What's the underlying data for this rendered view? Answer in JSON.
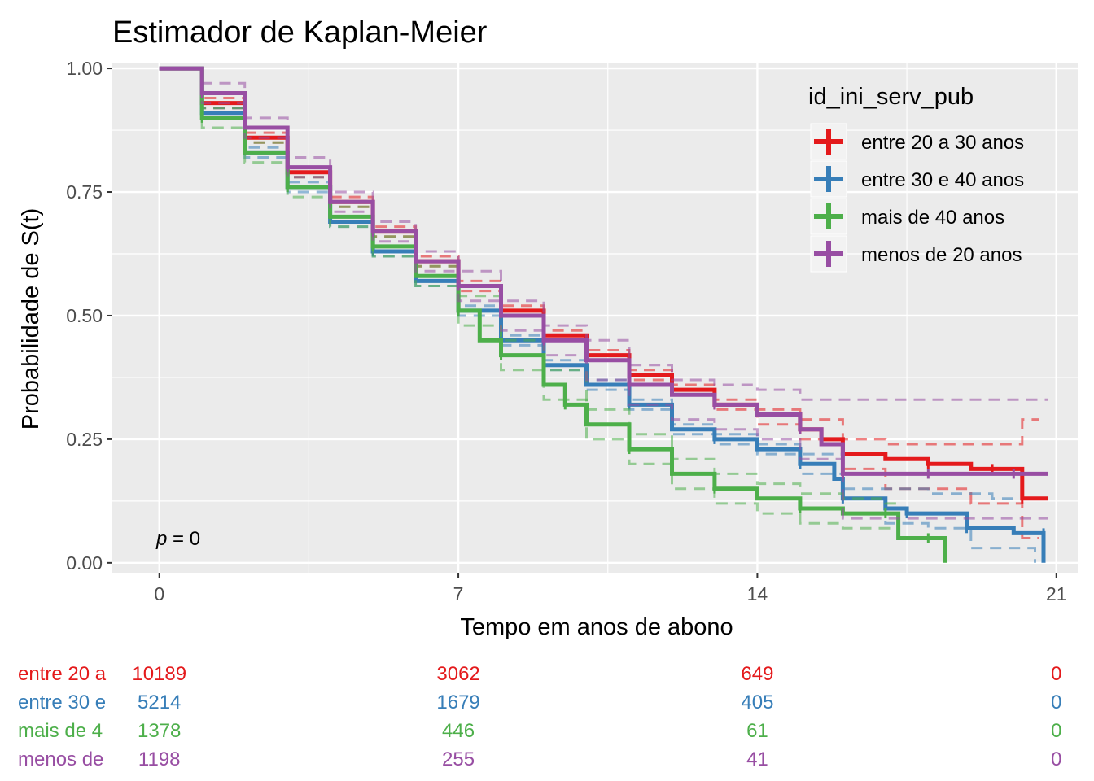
{
  "chart_data": {
    "type": "line",
    "subtype": "kaplan-meier",
    "title": "Estimador de Kaplan-Meier",
    "xlabel": "Tempo em anos de abono",
    "ylabel": "Probabilidade de S(t)",
    "xlim": [
      -1.1,
      21.5
    ],
    "ylim": [
      -0.02,
      1.01
    ],
    "x_ticks": [
      0,
      7,
      14,
      21
    ],
    "x_tick_labels": [
      "0",
      "7",
      "14",
      "21"
    ],
    "y_ticks": [
      0,
      0.25,
      0.5,
      0.75,
      1
    ],
    "y_tick_labels": [
      "0.00",
      "0.25",
      "0.50",
      "0.75",
      "1.00"
    ],
    "grid": true,
    "legend": {
      "title": "id_ini_serv_pub",
      "position": "top-right"
    },
    "pvalue": {
      "label": "p",
      "text": " = 0"
    },
    "series": [
      {
        "name": "entre 20 a 30 anos",
        "color": "#E41A1C",
        "points": [
          [
            0,
            1
          ],
          [
            1,
            0.93
          ],
          [
            2,
            0.86
          ],
          [
            3,
            0.79
          ],
          [
            4,
            0.73
          ],
          [
            5,
            0.67
          ],
          [
            6,
            0.61
          ],
          [
            7,
            0.56
          ],
          [
            8,
            0.51
          ],
          [
            9,
            0.46
          ],
          [
            10,
            0.42
          ],
          [
            11,
            0.38
          ],
          [
            12,
            0.35
          ],
          [
            13,
            0.32
          ],
          [
            14,
            0.3
          ],
          [
            15,
            0.27
          ],
          [
            15.5,
            0.25
          ],
          [
            16,
            0.22
          ],
          [
            17,
            0.21
          ],
          [
            18,
            0.2
          ],
          [
            19,
            0.19
          ],
          [
            19.5,
            0.19
          ],
          [
            20,
            0.19
          ],
          [
            20.2,
            0.13
          ],
          [
            20.8,
            0.13
          ]
        ],
        "lower": [
          [
            0,
            1
          ],
          [
            1,
            0.92
          ],
          [
            2,
            0.85
          ],
          [
            3,
            0.78
          ],
          [
            4,
            0.72
          ],
          [
            5,
            0.66
          ],
          [
            6,
            0.6
          ],
          [
            7,
            0.55
          ],
          [
            8,
            0.5
          ],
          [
            9,
            0.45
          ],
          [
            10,
            0.41
          ],
          [
            11,
            0.37
          ],
          [
            12,
            0.34
          ],
          [
            13,
            0.31
          ],
          [
            14,
            0.28
          ],
          [
            15,
            0.25
          ],
          [
            16,
            0.19
          ],
          [
            17,
            0.15
          ],
          [
            18,
            0.15
          ],
          [
            19,
            0.12
          ],
          [
            20,
            0.12
          ],
          [
            20.2,
            0.05
          ],
          [
            20.6,
            0.05
          ]
        ],
        "upper": [
          [
            0,
            1
          ],
          [
            1,
            0.94
          ],
          [
            2,
            0.87
          ],
          [
            3,
            0.8
          ],
          [
            4,
            0.74
          ],
          [
            5,
            0.68
          ],
          [
            6,
            0.62
          ],
          [
            7,
            0.57
          ],
          [
            8,
            0.52
          ],
          [
            9,
            0.47
          ],
          [
            10,
            0.43
          ],
          [
            11,
            0.39
          ],
          [
            12,
            0.36
          ],
          [
            13,
            0.33
          ],
          [
            14,
            0.31
          ],
          [
            15,
            0.29
          ],
          [
            16,
            0.25
          ],
          [
            17,
            0.24
          ],
          [
            18,
            0.24
          ],
          [
            19,
            0.24
          ],
          [
            20,
            0.24
          ],
          [
            20.2,
            0.29
          ],
          [
            20.6,
            0.29
          ]
        ]
      },
      {
        "name": "entre 30 e 40 anos",
        "color": "#377EB8",
        "points": [
          [
            0,
            1
          ],
          [
            1,
            0.91
          ],
          [
            2,
            0.83
          ],
          [
            3,
            0.76
          ],
          [
            4,
            0.69
          ],
          [
            5,
            0.63
          ],
          [
            6,
            0.57
          ],
          [
            7,
            0.51
          ],
          [
            8,
            0.45
          ],
          [
            9,
            0.4
          ],
          [
            10,
            0.36
          ],
          [
            11,
            0.32
          ],
          [
            12,
            0.27
          ],
          [
            13,
            0.25
          ],
          [
            14,
            0.23
          ],
          [
            15,
            0.2
          ],
          [
            15.8,
            0.17
          ],
          [
            16,
            0.13
          ],
          [
            17,
            0.11
          ],
          [
            17.5,
            0.1
          ],
          [
            18,
            0.1
          ],
          [
            18.9,
            0.07
          ],
          [
            20,
            0.06
          ],
          [
            20.7,
            0.06
          ],
          [
            20.7,
            0
          ]
        ],
        "lower": [
          [
            0,
            1
          ],
          [
            1,
            0.9
          ],
          [
            2,
            0.82
          ],
          [
            3,
            0.75
          ],
          [
            4,
            0.68
          ],
          [
            5,
            0.62
          ],
          [
            6,
            0.56
          ],
          [
            7,
            0.5
          ],
          [
            8,
            0.44
          ],
          [
            9,
            0.39
          ],
          [
            10,
            0.35
          ],
          [
            11,
            0.31
          ],
          [
            12,
            0.26
          ],
          [
            13,
            0.24
          ],
          [
            14,
            0.22
          ],
          [
            15,
            0.18
          ],
          [
            16,
            0.1
          ],
          [
            17,
            0.08
          ],
          [
            18,
            0.07
          ],
          [
            19,
            0.03
          ],
          [
            20,
            0.03
          ],
          [
            20.5,
            0
          ]
        ],
        "upper": [
          [
            0,
            1
          ],
          [
            1,
            0.92
          ],
          [
            2,
            0.84
          ],
          [
            3,
            0.77
          ],
          [
            4,
            0.7
          ],
          [
            5,
            0.64
          ],
          [
            6,
            0.58
          ],
          [
            7,
            0.52
          ],
          [
            8,
            0.46
          ],
          [
            9,
            0.41
          ],
          [
            10,
            0.37
          ],
          [
            11,
            0.33
          ],
          [
            12,
            0.28
          ],
          [
            13,
            0.26
          ],
          [
            14,
            0.24
          ],
          [
            15,
            0.22
          ],
          [
            16,
            0.15
          ],
          [
            17,
            0.15
          ],
          [
            18,
            0.14
          ],
          [
            19,
            0.14
          ],
          [
            19.5,
            0.13
          ],
          [
            20,
            0.13
          ]
        ]
      },
      {
        "name": "mais de 40 anos",
        "color": "#4DAF4A",
        "points": [
          [
            0,
            1
          ],
          [
            1,
            0.9
          ],
          [
            2,
            0.83
          ],
          [
            3,
            0.76
          ],
          [
            4,
            0.7
          ],
          [
            5,
            0.64
          ],
          [
            6,
            0.58
          ],
          [
            7,
            0.51
          ],
          [
            7.5,
            0.45
          ],
          [
            8,
            0.42
          ],
          [
            9,
            0.36
          ],
          [
            9.5,
            0.32
          ],
          [
            10,
            0.28
          ],
          [
            11,
            0.23
          ],
          [
            12,
            0.18
          ],
          [
            13,
            0.15
          ],
          [
            14,
            0.13
          ],
          [
            15,
            0.11
          ],
          [
            16,
            0.1
          ],
          [
            17,
            0.1
          ],
          [
            17.3,
            0.05
          ],
          [
            18,
            0.05
          ],
          [
            18.4,
            0.05
          ],
          [
            18.4,
            0
          ]
        ],
        "lower": [
          [
            0,
            1
          ],
          [
            1,
            0.88
          ],
          [
            2,
            0.81
          ],
          [
            3,
            0.74
          ],
          [
            4,
            0.68
          ],
          [
            5,
            0.62
          ],
          [
            6,
            0.56
          ],
          [
            7,
            0.48
          ],
          [
            8,
            0.39
          ],
          [
            9,
            0.33
          ],
          [
            10,
            0.25
          ],
          [
            11,
            0.2
          ],
          [
            12,
            0.15
          ],
          [
            13,
            0.12
          ],
          [
            14,
            0.1
          ],
          [
            15,
            0.08
          ],
          [
            16,
            0.07
          ],
          [
            17,
            0.07
          ],
          [
            17.3,
            0.05
          ]
        ],
        "upper": [
          [
            0,
            1
          ],
          [
            1,
            0.92
          ],
          [
            2,
            0.85
          ],
          [
            3,
            0.78
          ],
          [
            4,
            0.72
          ],
          [
            5,
            0.66
          ],
          [
            6,
            0.6
          ],
          [
            7,
            0.54
          ],
          [
            8,
            0.45
          ],
          [
            9,
            0.39
          ],
          [
            10,
            0.31
          ],
          [
            11,
            0.26
          ],
          [
            12,
            0.21
          ],
          [
            13,
            0.18
          ],
          [
            14,
            0.16
          ],
          [
            15,
            0.14
          ],
          [
            16,
            0.13
          ],
          [
            17,
            0.12
          ],
          [
            17.3,
            0.12
          ]
        ]
      },
      {
        "name": "menos de 20 anos",
        "color": "#984EA3",
        "points": [
          [
            0,
            1
          ],
          [
            1,
            0.95
          ],
          [
            2,
            0.88
          ],
          [
            3,
            0.8
          ],
          [
            4,
            0.73
          ],
          [
            5,
            0.67
          ],
          [
            6,
            0.61
          ],
          [
            7,
            0.56
          ],
          [
            8,
            0.5
          ],
          [
            9,
            0.45
          ],
          [
            10,
            0.41
          ],
          [
            11,
            0.36
          ],
          [
            12,
            0.34
          ],
          [
            13,
            0.32
          ],
          [
            14,
            0.3
          ],
          [
            15,
            0.27
          ],
          [
            15.5,
            0.24
          ],
          [
            16,
            0.18
          ],
          [
            17,
            0.18
          ],
          [
            18,
            0.18
          ],
          [
            19,
            0.18
          ],
          [
            20,
            0.18
          ],
          [
            20.8,
            0.18
          ]
        ],
        "lower": [
          [
            0,
            1
          ],
          [
            1,
            0.93
          ],
          [
            2,
            0.86
          ],
          [
            3,
            0.78
          ],
          [
            4,
            0.71
          ],
          [
            5,
            0.65
          ],
          [
            6,
            0.59
          ],
          [
            7,
            0.53
          ],
          [
            8,
            0.47
          ],
          [
            9,
            0.42
          ],
          [
            10,
            0.37
          ],
          [
            11,
            0.32
          ],
          [
            12,
            0.29
          ],
          [
            13,
            0.27
          ],
          [
            14,
            0.25
          ],
          [
            15,
            0.21
          ],
          [
            16,
            0.09
          ],
          [
            18,
            0.09
          ],
          [
            20,
            0.09
          ],
          [
            20.8,
            0.09
          ]
        ],
        "upper": [
          [
            0,
            1
          ],
          [
            1,
            0.97
          ],
          [
            2,
            0.9
          ],
          [
            3,
            0.82
          ],
          [
            4,
            0.75
          ],
          [
            5,
            0.69
          ],
          [
            6,
            0.63
          ],
          [
            7,
            0.59
          ],
          [
            8,
            0.53
          ],
          [
            9,
            0.48
          ],
          [
            10,
            0.45
          ],
          [
            11,
            0.4
          ],
          [
            12,
            0.37
          ],
          [
            13,
            0.36
          ],
          [
            14,
            0.35
          ],
          [
            15,
            0.33
          ],
          [
            16,
            0.33
          ],
          [
            18,
            0.33
          ],
          [
            20,
            0.33
          ],
          [
            20.8,
            0.33
          ]
        ]
      }
    ],
    "risk_table": {
      "rows": [
        {
          "label": "entre 20 a",
          "color": "#E41A1C",
          "values": [
            "10189",
            "3062",
            "649",
            "0"
          ]
        },
        {
          "label": "entre 30 e",
          "color": "#377EB8",
          "values": [
            "5214",
            "1679",
            "405",
            "0"
          ]
        },
        {
          "label": "mais de 4",
          "color": "#4DAF4A",
          "values": [
            "1378",
            "446",
            "61",
            "0"
          ]
        },
        {
          "label": "menos de",
          "color": "#984EA3",
          "values": [
            "1198",
            "255",
            "41",
            "0"
          ]
        }
      ]
    }
  }
}
